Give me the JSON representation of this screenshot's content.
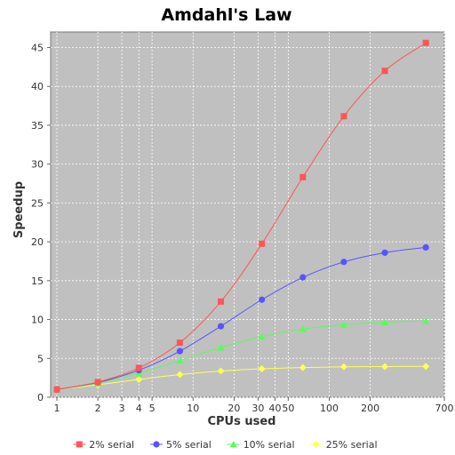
{
  "chart_data": {
    "type": "line",
    "title": "Amdahl's Law",
    "xlabel": "CPUs used",
    "ylabel": "Speedup",
    "x_scale": "log",
    "xlim": [
      0.9,
      700
    ],
    "ylim": [
      0,
      47
    ],
    "x_ticks": [
      1,
      2,
      3,
      4,
      5,
      10,
      20,
      30,
      40,
      50,
      100,
      200,
      700
    ],
    "x_tick_labels": [
      "1",
      "2",
      "3",
      "4",
      "5",
      "10",
      "20",
      "30",
      "40",
      "50",
      "100",
      "200",
      "700"
    ],
    "y_ticks": [
      0,
      5,
      10,
      15,
      20,
      25,
      30,
      35,
      40,
      45
    ],
    "y_tick_labels": [
      "0",
      "5",
      "10",
      "15",
      "20",
      "25",
      "30",
      "35",
      "40",
      "45"
    ],
    "grid": true,
    "legend_position": "bottom",
    "plot_background": "#c0c0c0",
    "x": [
      1,
      2,
      4,
      8,
      16,
      32,
      64,
      128,
      256,
      512
    ],
    "series": [
      {
        "name": "2% serial",
        "color": "#ff5555",
        "marker": "square",
        "values": [
          1.0,
          1.96,
          3.77,
          7.02,
          12.31,
          19.75,
          28.32,
          36.16,
          42.0,
          45.6
        ]
      },
      {
        "name": "5% serial",
        "color": "#5555ff",
        "marker": "circle",
        "values": [
          1.0,
          1.9,
          3.48,
          5.93,
          9.14,
          12.55,
          15.42,
          17.41,
          18.6,
          19.28
        ]
      },
      {
        "name": "10% serial",
        "color": "#55ff55",
        "marker": "triangle",
        "values": [
          1.0,
          1.82,
          3.08,
          4.71,
          6.4,
          7.8,
          8.77,
          9.34,
          9.66,
          9.82
        ]
      },
      {
        "name": "25% serial",
        "color": "#ffff55",
        "marker": "diamond",
        "values": [
          1.0,
          1.6,
          2.29,
          2.91,
          3.37,
          3.66,
          3.82,
          3.91,
          3.95,
          3.98
        ]
      }
    ]
  }
}
